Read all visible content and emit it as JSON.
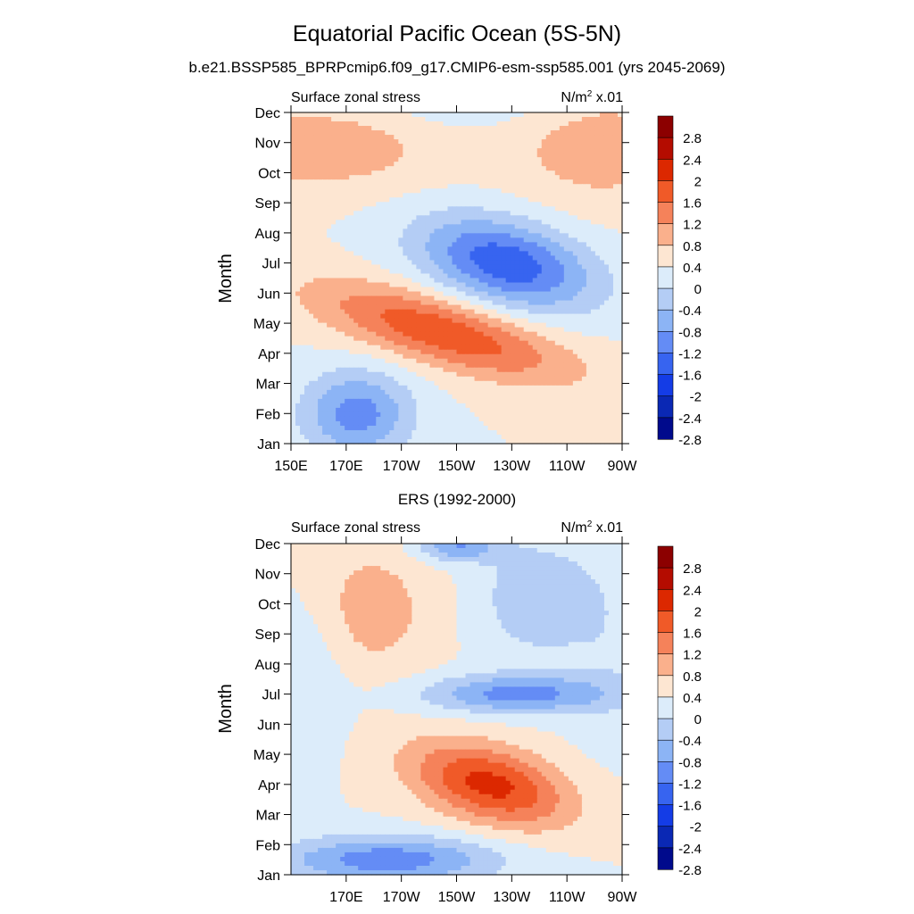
{
  "figure": {
    "title": "Equatorial Pacific Ocean (5S-5N)",
    "subtitle": "b.e21.BSSP585_BPRPcmip6.f09_g17.CMIP6-esm-ssp585.001 (yrs 2045-2069)"
  },
  "chart_data": [
    {
      "type": "heatmap",
      "title": "",
      "left_label": "Surface zonal stress",
      "units_label": "N/m",
      "units_sup": "2",
      "units_suffix": " x.01",
      "ylabel": "Month",
      "xlabel": "",
      "x_tick_labels": [
        "150E",
        "170E",
        "170W",
        "150W",
        "130W",
        "110W",
        "90W"
      ],
      "x_tick_values_lon": [
        150,
        170,
        190,
        210,
        230,
        250,
        270
      ],
      "xlim_lon": [
        150,
        270
      ],
      "y_tick_labels": [
        "Jan",
        "Feb",
        "Mar",
        "Apr",
        "May",
        "Jun",
        "Jul",
        "Aug",
        "Sep",
        "Oct",
        "Nov",
        "Dec"
      ],
      "ylim_month": [
        1,
        12
      ],
      "contour_levels": [
        -2.8,
        -2.4,
        -2,
        -1.6,
        -1.2,
        -0.8,
        -0.4,
        0,
        0.4,
        0.8,
        1.2,
        1.6,
        2,
        2.4,
        2.8
      ],
      "colorbar_labels": [
        "2.8",
        "2.4",
        "2",
        "1.6",
        "1.2",
        "0.8",
        "0.4",
        "0",
        "-0.4",
        "-0.8",
        "-1.2",
        "-1.6",
        "-2",
        "-2.4",
        "-2.8"
      ],
      "features": [
        {
          "lon": 228,
          "month": 7.0,
          "amplitude": -1.9,
          "sigma_lon": 22,
          "sigma_month": 1.0,
          "tilt": 0.018
        },
        {
          "lon": 205,
          "month": 4.7,
          "amplitude": 1.55,
          "sigma_lon": 32,
          "sigma_month": 0.8,
          "tilt": 0.024
        },
        {
          "lon": 174,
          "month": 2.0,
          "amplitude": -1.4,
          "sigma_lon": 14,
          "sigma_month": 1.0,
          "tilt": 0.0
        },
        {
          "lon": 160,
          "month": 10.8,
          "amplitude": 0.7,
          "sigma_lon": 30,
          "sigma_month": 1.0,
          "tilt": 0.0
        },
        {
          "lon": 262,
          "month": 10.8,
          "amplitude": 0.65,
          "sigma_lon": 22,
          "sigma_month": 1.3,
          "tilt": 0.0
        },
        {
          "lon": 215,
          "month": 12.3,
          "amplitude": -0.35,
          "sigma_lon": 25,
          "sigma_month": 0.6,
          "tilt": 0.0
        }
      ]
    },
    {
      "type": "heatmap",
      "title": "ERS (1992-2000)",
      "left_label": "Surface zonal stress",
      "units_label": "N/m",
      "units_sup": "2",
      "units_suffix": " x.01",
      "ylabel": "Month",
      "xlabel": "",
      "x_tick_labels": [
        "170E",
        "170W",
        "150W",
        "130W",
        "110W",
        "90W"
      ],
      "x_tick_values_lon": [
        170,
        190,
        210,
        230,
        250,
        270
      ],
      "xlim_lon": [
        150,
        270
      ],
      "y_tick_labels": [
        "Jan",
        "Feb",
        "Mar",
        "Apr",
        "May",
        "Jun",
        "Jul",
        "Aug",
        "Sep",
        "Oct",
        "Nov",
        "Dec"
      ],
      "ylim_month": [
        1,
        12
      ],
      "contour_levels": [
        -2.8,
        -2.4,
        -2,
        -1.6,
        -1.2,
        -0.8,
        -0.4,
        0,
        0.4,
        0.8,
        1.2,
        1.6,
        2,
        2.4,
        2.8
      ],
      "colorbar_labels": [
        "2.8",
        "2.4",
        "2",
        "1.6",
        "1.2",
        "0.8",
        "0.4",
        "0",
        "-0.4",
        "-0.8",
        "-1.2",
        "-1.6",
        "-2",
        "-2.4",
        "-2.8"
      ],
      "features": [
        {
          "lon": 222,
          "month": 4.0,
          "amplitude": 1.75,
          "sigma_lon": 20,
          "sigma_month": 0.9,
          "tilt": 0.02
        },
        {
          "lon": 232,
          "month": 7.0,
          "amplitude": -1.35,
          "sigma_lon": 24,
          "sigma_month": 0.45,
          "tilt": 0.0
        },
        {
          "lon": 185,
          "month": 1.5,
          "amplitude": -1.45,
          "sigma_lon": 28,
          "sigma_month": 0.55,
          "tilt": 0.0
        },
        {
          "lon": 178,
          "month": 9.8,
          "amplitude": 0.65,
          "sigma_lon": 16,
          "sigma_month": 1.5,
          "tilt": 0.0
        },
        {
          "lon": 210,
          "month": 11.9,
          "amplitude": -1.2,
          "sigma_lon": 10,
          "sigma_month": 0.35,
          "tilt": 0.0
        },
        {
          "lon": 238,
          "month": 10.2,
          "amplitude": -0.7,
          "sigma_lon": 14,
          "sigma_month": 1.4,
          "tilt": 0.0
        },
        {
          "lon": 158,
          "month": 8.2,
          "amplitude": -0.35,
          "sigma_lon": 10,
          "sigma_month": 2.0,
          "tilt": 0.0
        },
        {
          "lon": 265,
          "month": 9.0,
          "amplitude": -0.3,
          "sigma_lon": 12,
          "sigma_month": 2.5,
          "tilt": 0.0
        }
      ]
    }
  ],
  "colorbar_colors": [
    "#8c0000",
    "#b40c00",
    "#dc2800",
    "#f05a28",
    "#f5825a",
    "#fab08c",
    "#fde6d2",
    "#dcecfa",
    "#b4cdf5",
    "#8cb4f5",
    "#648cf5",
    "#3764f0",
    "#143ce6",
    "#0a28b4",
    "#000a8c"
  ]
}
